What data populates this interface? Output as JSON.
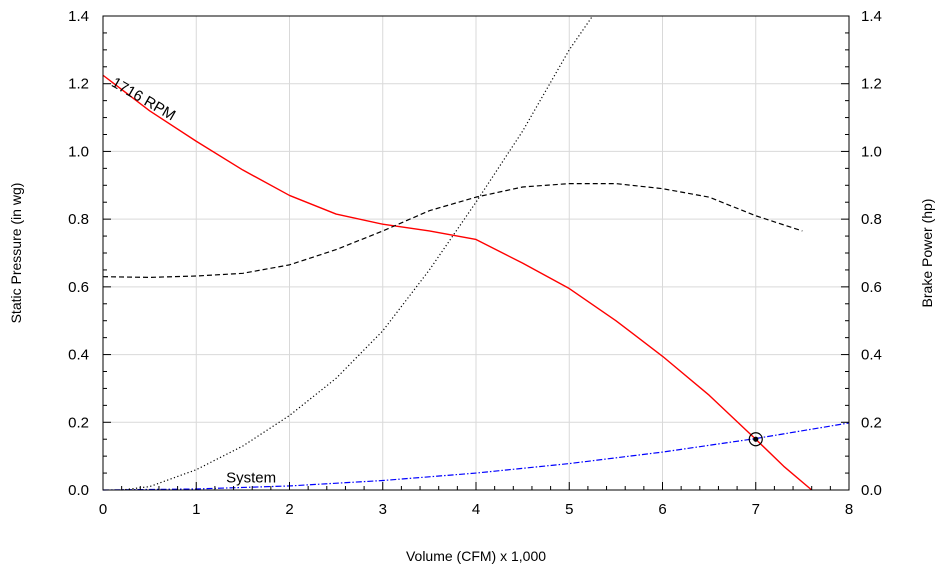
{
  "chart_data": {
    "type": "line",
    "xlabel": "Volume (CFM) x 1,000",
    "ylabel": "Static Pressure (in wg)",
    "y2label": "Brake Power (hp)",
    "xlim": [
      0,
      8
    ],
    "ylim": [
      0,
      1.4
    ],
    "y2lim": [
      0,
      1.4
    ],
    "grid": true,
    "x_ticks": [
      "0",
      "1",
      "2",
      "3",
      "4",
      "5",
      "6",
      "7",
      "8"
    ],
    "y_ticks": [
      "0.0",
      "0.2",
      "0.4",
      "0.6",
      "0.8",
      "1.0",
      "1.2",
      "1.4"
    ],
    "y2_ticks": [
      "0.0",
      "0.2",
      "0.4",
      "0.6",
      "0.8",
      "1.0",
      "1.2",
      "1.4"
    ],
    "series": [
      {
        "name": "1716 RPM",
        "style": "solid",
        "color": "#ff0000",
        "axis": "left",
        "points": [
          [
            0,
            1.225
          ],
          [
            0.5,
            1.12
          ],
          [
            1,
            1.03
          ],
          [
            1.5,
            0.945
          ],
          [
            2,
            0.87
          ],
          [
            2.5,
            0.815
          ],
          [
            3,
            0.785
          ],
          [
            3.5,
            0.765
          ],
          [
            4,
            0.74
          ],
          [
            4.5,
            0.67
          ],
          [
            5,
            0.595
          ],
          [
            5.5,
            0.5
          ],
          [
            6,
            0.395
          ],
          [
            6.5,
            0.28
          ],
          [
            7,
            0.15
          ],
          [
            7.3,
            0.07
          ],
          [
            7.6,
            0.0
          ]
        ]
      },
      {
        "name": "System",
        "style": "dashdot",
        "color": "#0000ff",
        "axis": "left",
        "points": [
          [
            0,
            0.0
          ],
          [
            1,
            0.003
          ],
          [
            2,
            0.012
          ],
          [
            3,
            0.028
          ],
          [
            4,
            0.05
          ],
          [
            5,
            0.078
          ],
          [
            6,
            0.112
          ],
          [
            7,
            0.152
          ],
          [
            8,
            0.198
          ]
        ]
      },
      {
        "name": "",
        "style": "dashed",
        "color": "#000000",
        "axis": "right",
        "points": [
          [
            0,
            0.63
          ],
          [
            0.5,
            0.628
          ],
          [
            1,
            0.632
          ],
          [
            1.5,
            0.64
          ],
          [
            2,
            0.665
          ],
          [
            2.5,
            0.71
          ],
          [
            3,
            0.765
          ],
          [
            3.5,
            0.825
          ],
          [
            4,
            0.865
          ],
          [
            4.5,
            0.895
          ],
          [
            5,
            0.905
          ],
          [
            5.5,
            0.905
          ],
          [
            6,
            0.89
          ],
          [
            6.5,
            0.865
          ],
          [
            7,
            0.81
          ],
          [
            7.5,
            0.765
          ]
        ]
      },
      {
        "name": "",
        "style": "dotted",
        "color": "#000000",
        "axis": "left",
        "points": [
          [
            0.2,
            0.0
          ],
          [
            0.5,
            0.01
          ],
          [
            1,
            0.06
          ],
          [
            1.5,
            0.13
          ],
          [
            2,
            0.22
          ],
          [
            2.5,
            0.33
          ],
          [
            3,
            0.47
          ],
          [
            3.5,
            0.65
          ],
          [
            4,
            0.85
          ],
          [
            4.5,
            1.06
          ],
          [
            5,
            1.3
          ],
          [
            5.25,
            1.4
          ]
        ]
      }
    ],
    "operating_point": {
      "x": 7.0,
      "y": 0.15
    },
    "annotations": [
      "1716 RPM",
      "System"
    ]
  }
}
